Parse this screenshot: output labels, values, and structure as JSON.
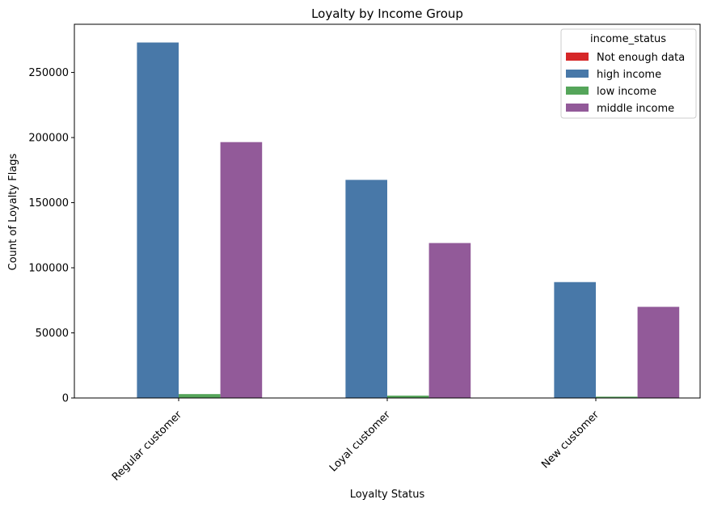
{
  "chart_data": {
    "type": "bar",
    "title": "Loyalty by Income Group",
    "xlabel": "Loyalty Status",
    "ylabel": "Count of Loyalty Flags",
    "categories": [
      "Regular customer",
      "Loyal customer",
      "New customer"
    ],
    "ylim": [
      0,
      287000
    ],
    "yticks": [
      0,
      50000,
      100000,
      150000,
      200000,
      250000
    ],
    "grid": false,
    "legend": {
      "title": "income_status",
      "placement": "top-right"
    },
    "series": [
      {
        "name": "Not enough data",
        "color": "#d62728",
        "values": [
          0,
          0,
          0
        ]
      },
      {
        "name": "high income",
        "color": "#4878a8",
        "values": [
          273000,
          167500,
          89000
        ]
      },
      {
        "name": "low income",
        "color": "#55a55a",
        "values": [
          3000,
          1800,
          1000
        ]
      },
      {
        "name": "middle income",
        "color": "#925a99",
        "values": [
          196500,
          119000,
          70000
        ]
      }
    ]
  }
}
